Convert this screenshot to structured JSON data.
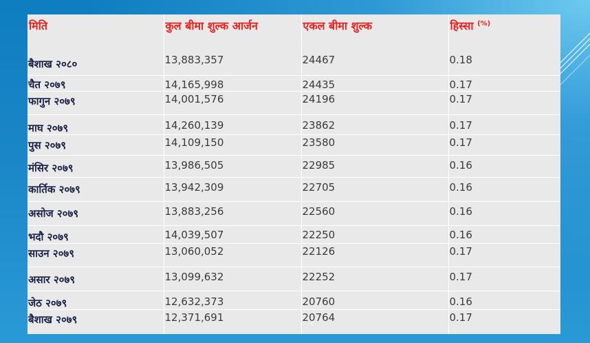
{
  "table": {
    "headers": {
      "date": "मिति",
      "total": "कुल बीमा शुल्क आर्जन",
      "single": "एकल बीमा शुल्क",
      "share": "हिस्सा",
      "share_unit": "(%)"
    },
    "rows": [
      {
        "date": "बैशाख २०८०",
        "total": "13,883,357",
        "single": "24467",
        "share": "0.18"
      },
      {
        "date": "चैत २०७९",
        "total": "14,165,998",
        "single": "24435",
        "share": "0.17"
      },
      {
        "date": "फागुन २०७९",
        "total": "14,001,576",
        "single": "24196",
        "share": "0.17"
      },
      {
        "date": "माघ २०७९",
        "total": "14,260,139",
        "single": "23862",
        "share": "0.17"
      },
      {
        "date": "पुस २०७९",
        "total": "14,109,150",
        "single": "23580",
        "share": "0.17"
      },
      {
        "date": "मंसिर २०७९",
        "total": "13,986,505",
        "single": "22985",
        "share": "0.16"
      },
      {
        "date": "कार्तिक २०७९",
        "total": "13,942,309",
        "single": "22705",
        "share": "0.16"
      },
      {
        "date": "असोज २०७९",
        "total": "13,883,256",
        "single": "22560",
        "share": "0.16"
      },
      {
        "date": "भदौ २०७९",
        "total": "14,039,507",
        "single": "22250",
        "share": "0.16"
      },
      {
        "date": "साउन २०७९",
        "total": "13,060,052",
        "single": "22126",
        "share": "0.17"
      },
      {
        "date": "असार २०७९",
        "total": "13,099,632",
        "single": "22252",
        "share": "0.17"
      },
      {
        "date": "जेठ २०७९",
        "total": "12,632,373",
        "single": "20760",
        "share": "0.16"
      },
      {
        "date": "बैशाख २०७९",
        "total": "12,371,691",
        "single": "20764",
        "share": "0.17"
      }
    ]
  },
  "colors": {
    "header_text": "#e8201e",
    "date_text": "#1a2245",
    "number_text": "#3a3a3a",
    "table_bg": "#e9e9ea",
    "slide_bg": "#1a86c7"
  }
}
